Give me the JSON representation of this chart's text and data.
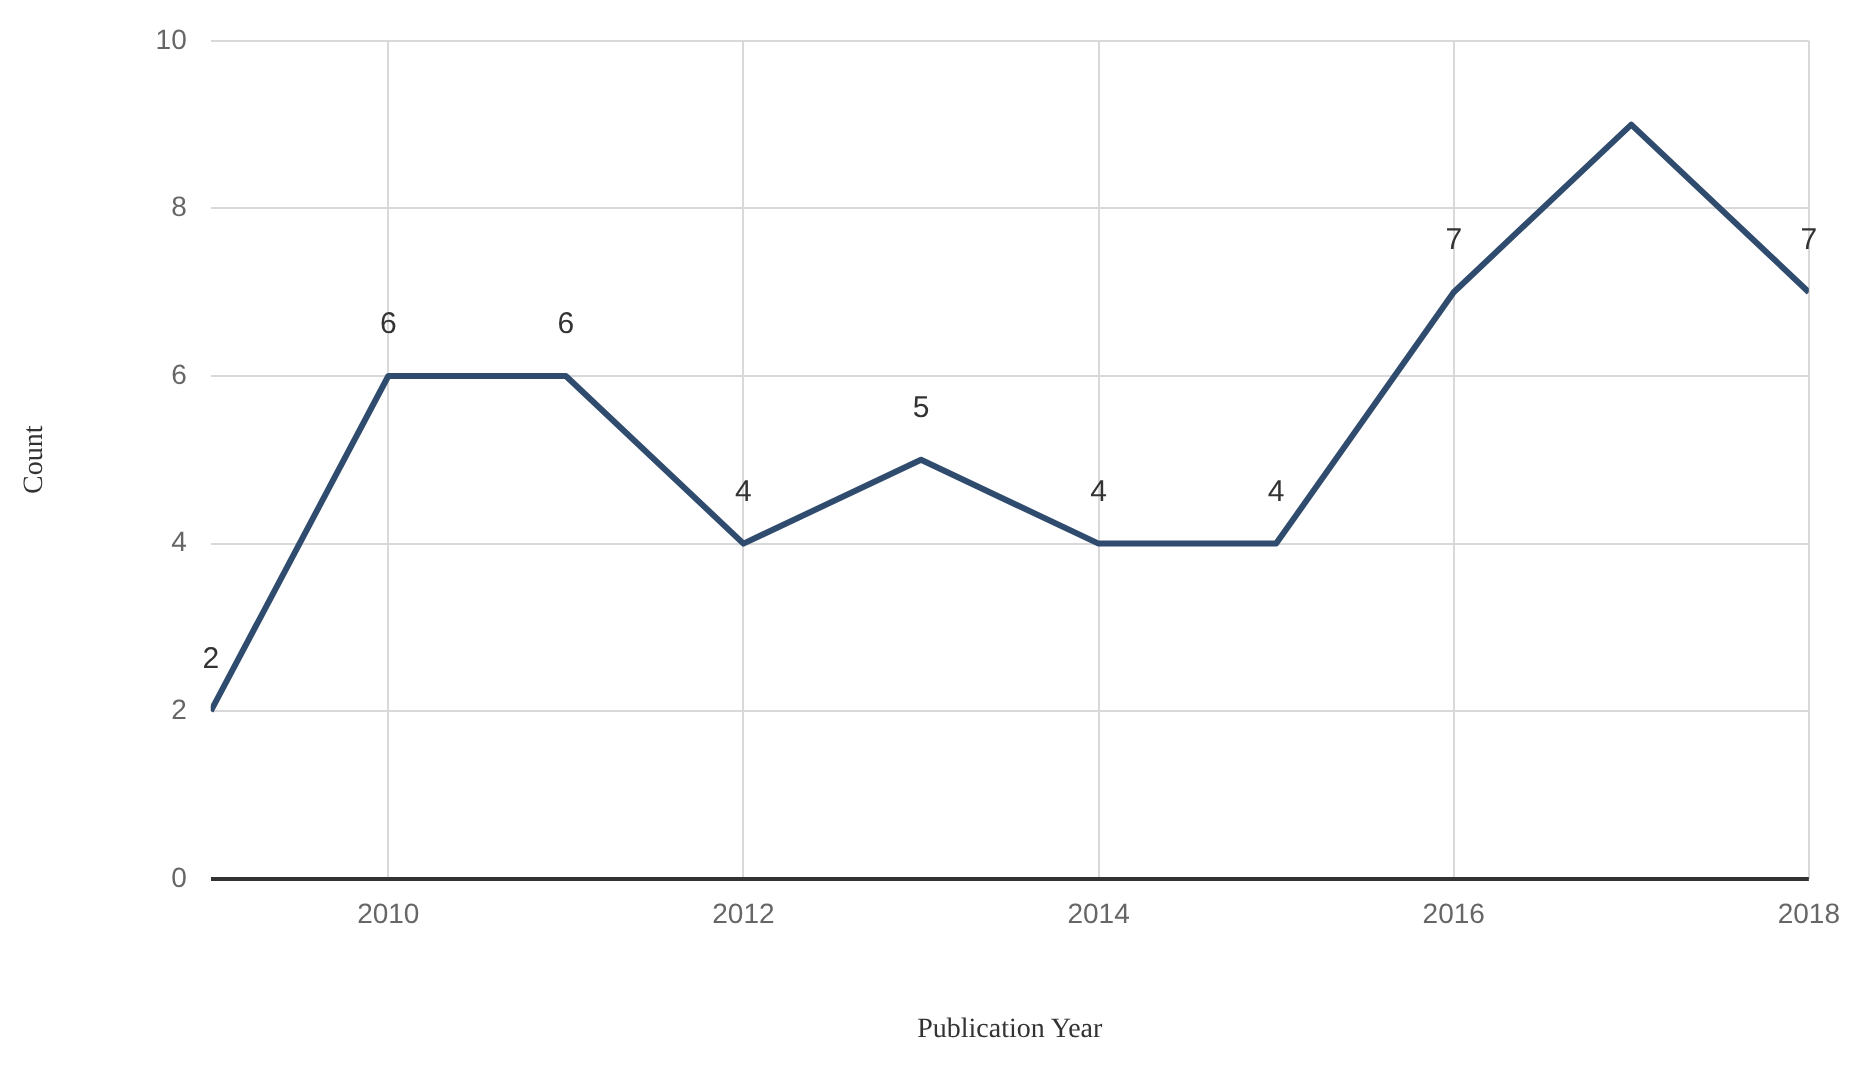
{
  "chart_data": {
    "type": "line",
    "xlabel": "Publication Year",
    "ylabel": "Count",
    "x": [
      2009,
      2010,
      2011,
      2012,
      2013,
      2014,
      2015,
      2016,
      2017,
      2018
    ],
    "series": [
      {
        "color": "#2f4b6e",
        "values": [
          2,
          6,
          6,
          4,
          5,
          4,
          4,
          7,
          9,
          7
        ],
        "value_labels": [
          "2",
          "6",
          "6",
          "4",
          "5",
          "4",
          "4",
          "7",
          null,
          "7"
        ]
      }
    ],
    "xlim": [
      2009,
      2018
    ],
    "xticks": [
      2010,
      2012,
      2014,
      2016,
      2018
    ],
    "ylim": [
      0,
      10
    ],
    "yticks": [
      0,
      2,
      4,
      6,
      8,
      10
    ],
    "grid": true,
    "legend": false,
    "marker": "none",
    "line_style": "solid"
  }
}
